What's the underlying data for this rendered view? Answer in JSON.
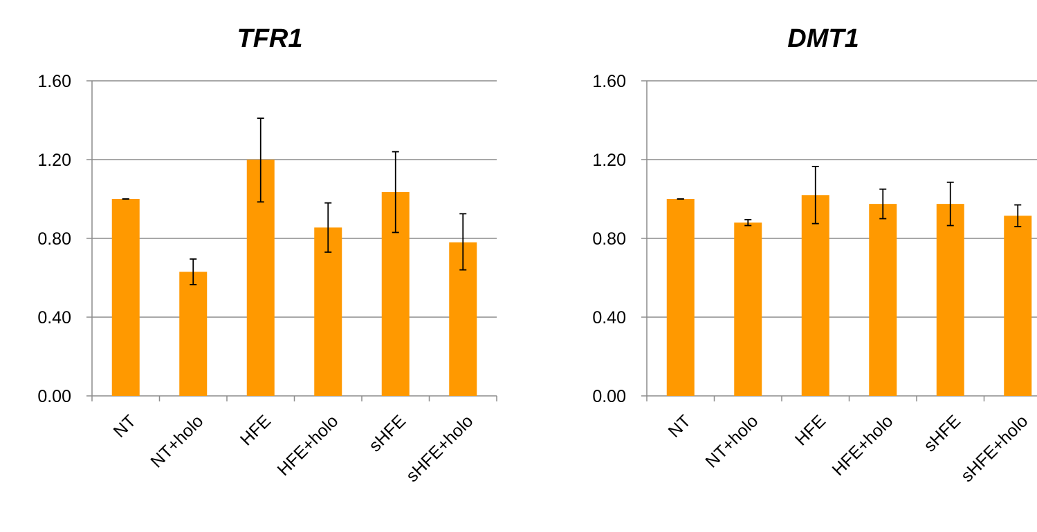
{
  "colors": {
    "bar": "#FF9900",
    "grid": "#8C8C8C",
    "axis": "#8C8C8C",
    "text": "#000000",
    "error": "#000000"
  },
  "chart_data": [
    {
      "type": "bar",
      "title": "TFR1",
      "title_style": "bold-italic",
      "xlabel": "",
      "ylabel": "",
      "categories": [
        "NT",
        "NT+holo",
        "HFE",
        "HFE+holo",
        "sHFE",
        "sHFE+holo"
      ],
      "values": [
        1.0,
        0.63,
        1.2,
        0.855,
        1.035,
        0.78
      ],
      "error_low": [
        1.0,
        0.565,
        0.985,
        0.73,
        0.83,
        0.64
      ],
      "error_high": [
        1.0,
        0.695,
        1.41,
        0.98,
        1.24,
        0.925
      ],
      "yticks": [
        "0.00",
        "0.40",
        "0.80",
        "1.20",
        "1.60"
      ],
      "ylim": [
        0,
        1.6
      ],
      "grid": true
    },
    {
      "type": "bar",
      "title": "DMT1",
      "title_style": "bold-italic",
      "xlabel": "",
      "ylabel": "",
      "categories": [
        "NT",
        "NT+holo",
        "HFE",
        "HFE+holo",
        "sHFE",
        "sHFE+holo"
      ],
      "values": [
        1.0,
        0.88,
        1.02,
        0.975,
        0.975,
        0.915
      ],
      "error_low": [
        1.0,
        0.865,
        0.875,
        0.9,
        0.865,
        0.86
      ],
      "error_high": [
        1.0,
        0.895,
        1.165,
        1.05,
        1.085,
        0.97
      ],
      "yticks": [
        "0.00",
        "0.40",
        "0.80",
        "1.20",
        "1.60"
      ],
      "ylim": [
        0,
        1.6
      ],
      "grid": true
    }
  ]
}
